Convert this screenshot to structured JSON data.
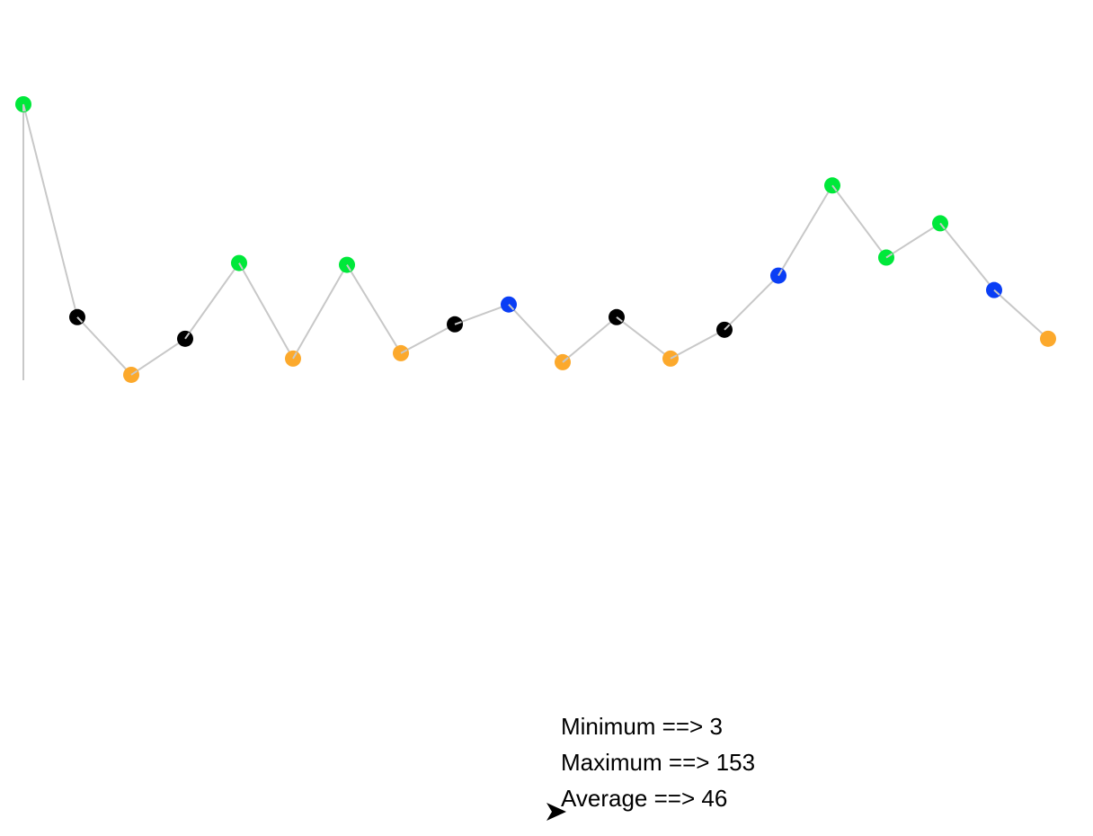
{
  "chart_data": {
    "type": "line",
    "x": [
      0,
      1,
      2,
      3,
      4,
      5,
      6,
      7,
      8,
      9,
      10,
      11,
      12,
      13,
      14,
      15,
      16,
      17,
      18,
      19
    ],
    "values": [
      153,
      35,
      3,
      23,
      65,
      12,
      64,
      15,
      31,
      42,
      10,
      35,
      12,
      28,
      58,
      108,
      68,
      87,
      50,
      23
    ],
    "point_colors": [
      "#00e83a",
      "#000000",
      "#fca92c",
      "#000000",
      "#00e83a",
      "#fca92c",
      "#00e83a",
      "#fca92c",
      "#000000",
      "#0a3ef5",
      "#fca92c",
      "#000000",
      "#fca92c",
      "#000000",
      "#0a3ef5",
      "#00e83a",
      "#00e83a",
      "#00e83a",
      "#0a3ef5",
      "#fca92c"
    ],
    "line_color": "#c8c8c8",
    "ylim": [
      0,
      153
    ],
    "grid": false,
    "legend": "none"
  },
  "stats": {
    "minimum": "Minimum ==> 3",
    "maximum": "Maximum ==> 153",
    "average": "Average ==> 46"
  },
  "cursor": {
    "icon": "arrow-cursor-icon",
    "color": "#000000"
  }
}
